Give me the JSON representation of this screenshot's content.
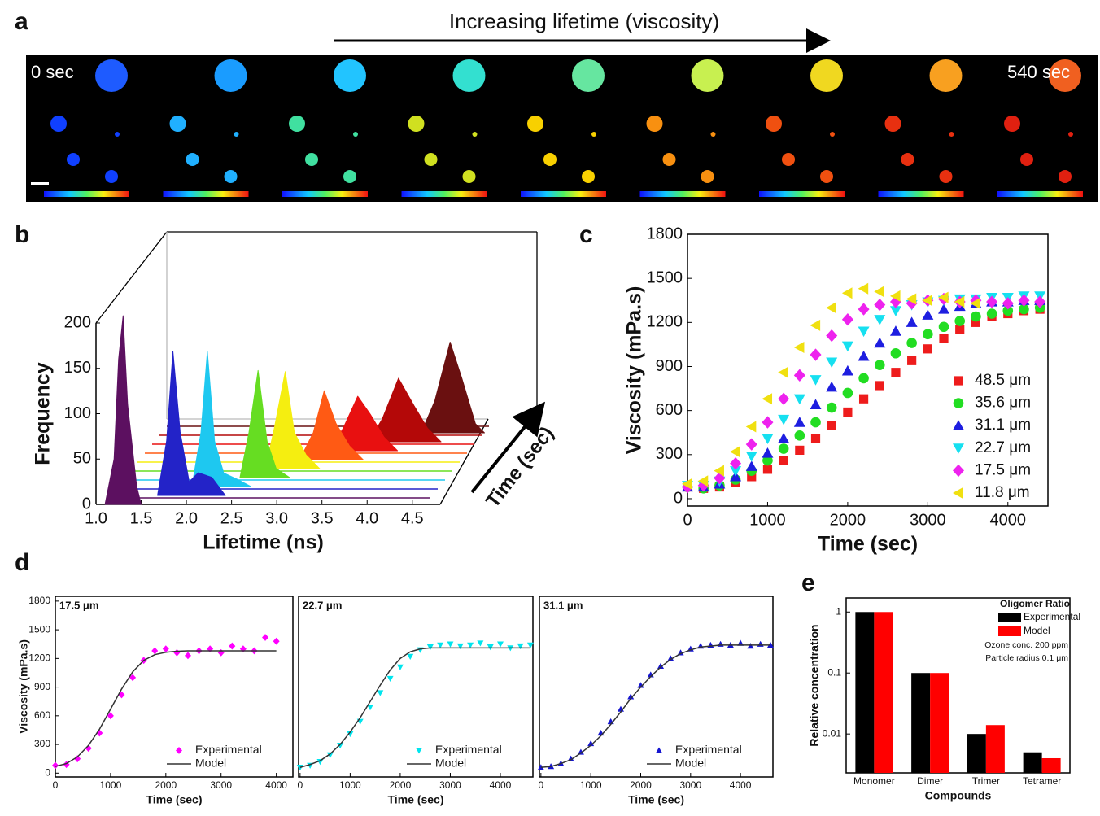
{
  "panel_a": {
    "panel_label": "a",
    "arrow_text": "Increasing lifetime (viscosity)",
    "start_label": "0 sec",
    "end_label": "540 sec"
  },
  "chart_data": [
    {
      "type": "ridgeline",
      "panel_label": "b",
      "xlabel": "Lifetime (ns)",
      "ylabel": "Frequency",
      "zlabel": "Time (sec)",
      "xlim": [
        1.0,
        4.7
      ],
      "ylim": [
        0,
        200
      ],
      "xticks": [
        {
          "value": 1,
          "label": "1.0"
        },
        1.5,
        {
          "value": 2,
          "label": "2.0"
        },
        2.5,
        {
          "value": 3,
          "label": "3.0"
        },
        3.5,
        {
          "value": 4,
          "label": "4.0"
        },
        4.5
      ],
      "yticks": [
        0,
        50,
        100,
        150,
        200
      ],
      "series": [
        {
          "color": "#5c1060",
          "x": [
            1.1,
            1.2,
            1.25,
            1.3,
            1.35,
            1.45,
            1.5
          ],
          "values": [
            0,
            50,
            160,
            208,
            110,
            20,
            0
          ]
        },
        {
          "color": "#2323c8",
          "x": [
            1.6,
            1.7,
            1.77,
            1.85,
            1.95,
            2.05,
            2.2,
            2.35
          ],
          "values": [
            0,
            60,
            159,
            70,
            15,
            25,
            20,
            0
          ]
        },
        {
          "color": "#1ec8f0",
          "x": [
            1.9,
            2.0,
            2.07,
            2.15,
            2.25,
            2.4,
            2.55
          ],
          "values": [
            0,
            60,
            149,
            50,
            15,
            8,
            0
          ]
        },
        {
          "color": "#66dd22",
          "x": [
            2.35,
            2.45,
            2.55,
            2.65,
            2.75,
            2.9
          ],
          "values": [
            0,
            50,
            118,
            40,
            10,
            0
          ]
        },
        {
          "color": "#f5ee10",
          "x": [
            2.55,
            2.65,
            2.77,
            2.87,
            3.0,
            3.15
          ],
          "values": [
            0,
            45,
            107,
            40,
            15,
            0
          ]
        },
        {
          "color": "#ff5a14",
          "x": [
            2.85,
            3.0,
            3.12,
            3.25,
            3.4,
            3.55
          ],
          "values": [
            0,
            30,
            76,
            40,
            15,
            0
          ]
        },
        {
          "color": "#e81010",
          "x": [
            3.1,
            3.25,
            3.41,
            3.55,
            3.7,
            3.85
          ],
          "values": [
            0,
            25,
            60,
            40,
            15,
            0
          ]
        },
        {
          "color": "#b40808",
          "x": [
            3.45,
            3.6,
            3.78,
            3.95,
            4.1,
            4.25
          ],
          "values": [
            0,
            25,
            70,
            40,
            15,
            0
          ]
        },
        {
          "color": "#6a1010",
          "x": [
            3.95,
            4.1,
            4.27,
            4.4,
            4.55,
            4.65
          ],
          "values": [
            0,
            35,
            100,
            60,
            10,
            0
          ]
        }
      ]
    },
    {
      "type": "scatter",
      "panel_label": "c",
      "xlabel": "Time (sec)",
      "ylabel": "Viscosity (mPa.s)",
      "xlim": [
        0,
        4500
      ],
      "ylim": [
        -50,
        1800
      ],
      "xticks": [
        0,
        1000,
        2000,
        3000,
        4000
      ],
      "yticks": [
        0,
        300,
        600,
        900,
        1200,
        1500,
        1800
      ],
      "legend": "lower right",
      "x": [
        0,
        200,
        400,
        600,
        800,
        1000,
        1200,
        1400,
        1600,
        1800,
        2000,
        2200,
        2400,
        2600,
        2800,
        3000,
        3200,
        3400,
        3600,
        3800,
        4000,
        4200,
        4400
      ],
      "series": [
        {
          "name": "48.5 μm",
          "color": "#ee1c1c",
          "marker": "square",
          "values": [
            80,
            70,
            80,
            110,
            150,
            200,
            260,
            330,
            410,
            500,
            590,
            680,
            770,
            860,
            940,
            1020,
            1090,
            1150,
            1200,
            1240,
            1260,
            1280,
            1290
          ]
        },
        {
          "name": "35.6 μm",
          "color": "#22dd22",
          "marker": "circle",
          "values": [
            80,
            70,
            90,
            130,
            190,
            260,
            340,
            430,
            520,
            620,
            720,
            820,
            910,
            990,
            1060,
            1120,
            1170,
            1210,
            1240,
            1260,
            1280,
            1290,
            1300
          ]
        },
        {
          "name": "31.1 μm",
          "color": "#1e1ee0",
          "marker": "triangle-up",
          "values": [
            80,
            80,
            100,
            150,
            220,
            310,
            410,
            520,
            640,
            760,
            870,
            970,
            1060,
            1140,
            1200,
            1250,
            1290,
            1310,
            1330,
            1340,
            1340,
            1350,
            1350
          ]
        },
        {
          "name": "22.7 μm",
          "color": "#16e0f0",
          "marker": "triangle-down",
          "values": [
            90,
            90,
            120,
            190,
            290,
            410,
            540,
            680,
            810,
            930,
            1040,
            1140,
            1220,
            1280,
            1320,
            1340,
            1350,
            1360,
            1360,
            1370,
            1370,
            1380,
            1380
          ]
        },
        {
          "name": "17.5 μm",
          "color": "#ee22ee",
          "marker": "diamond",
          "values": [
            80,
            90,
            140,
            240,
            370,
            520,
            680,
            840,
            980,
            1110,
            1220,
            1290,
            1320,
            1340,
            1330,
            1350,
            1360,
            1340,
            1350,
            1340,
            1330,
            1350,
            1340
          ]
        },
        {
          "name": "11.8 μm",
          "color": "#f0e010",
          "marker": "triangle-left",
          "values": [
            100,
            120,
            190,
            320,
            490,
            680,
            860,
            1030,
            1180,
            1300,
            1400,
            1430,
            1410,
            1380,
            1360,
            1350,
            1370,
            1340,
            1330,
            null,
            null,
            null,
            null
          ]
        }
      ]
    },
    {
      "type": "scatter",
      "panel_label": "d",
      "subtitle": "17.5 μm",
      "xlabel": "Time (sec)",
      "ylabel": "Viscosity (mPa.s)",
      "xlim": [
        0,
        4300
      ],
      "ylim": [
        -40,
        1850
      ],
      "xticks": [
        0,
        1000,
        2000,
        3000,
        4000
      ],
      "yticks": [
        0,
        300,
        600,
        900,
        1200,
        1500,
        1800
      ],
      "legend": "lower right",
      "x": [
        0,
        200,
        400,
        600,
        800,
        1000,
        1200,
        1400,
        1600,
        1800,
        2000,
        2200,
        2400,
        2600,
        2800,
        3000,
        3200,
        3400,
        3600,
        3800,
        4000
      ],
      "series": [
        {
          "name": "Experimental",
          "color": "#ff00ff",
          "marker": "diamond",
          "values": [
            80,
            90,
            150,
            260,
            420,
            600,
            820,
            1000,
            1180,
            1280,
            1300,
            1260,
            1230,
            1280,
            1300,
            1260,
            1330,
            1300,
            1280,
            1420,
            1380
          ]
        },
        {
          "name": "Model",
          "color": "#333333",
          "line": true,
          "values": [
            70,
            100,
            170,
            290,
            460,
            670,
            880,
            1060,
            1180,
            1240,
            1265,
            1275,
            1280,
            1280,
            1280,
            1280,
            1280,
            1280,
            1280,
            1280,
            1280
          ]
        }
      ]
    },
    {
      "type": "scatter",
      "subtitle": "22.7 μm",
      "xlabel": "Time (sec)",
      "xlim": [
        -30,
        4650
      ],
      "ylim": [
        -40,
        1850
      ],
      "xticks": [
        0,
        1000,
        2000,
        3000,
        4000
      ],
      "legend": "lower right",
      "x": [
        0,
        200,
        400,
        600,
        800,
        1000,
        1200,
        1400,
        1600,
        1800,
        2000,
        2200,
        2400,
        2600,
        2800,
        3000,
        3200,
        3400,
        3600,
        3800,
        4000,
        4200,
        4400,
        4600
      ],
      "series": [
        {
          "name": "Experimental",
          "color": "#00e5ee",
          "marker": "triangle-down",
          "values": [
            60,
            80,
            120,
            190,
            290,
            410,
            540,
            690,
            840,
            990,
            1110,
            1220,
            1290,
            1320,
            1340,
            1350,
            1330,
            1340,
            1360,
            1320,
            1350,
            1310,
            1330,
            1340
          ]
        },
        {
          "name": "Model",
          "color": "#333333",
          "line": true,
          "values": [
            60,
            90,
            130,
            200,
            300,
            430,
            580,
            750,
            920,
            1080,
            1200,
            1270,
            1300,
            1310,
            1310,
            1310,
            1310,
            1310,
            1310,
            1310,
            1310,
            1310,
            1310,
            1310
          ]
        }
      ]
    },
    {
      "type": "scatter",
      "subtitle": "31.1 μm",
      "xlabel": "Time (sec)",
      "xlim": [
        -30,
        4650
      ],
      "ylim": [
        -40,
        1850
      ],
      "xticks": [
        0,
        1000,
        2000,
        3000,
        4000
      ],
      "legend": "lower right",
      "x": [
        0,
        200,
        400,
        600,
        800,
        1000,
        1200,
        1400,
        1600,
        1800,
        2000,
        2200,
        2400,
        2600,
        2800,
        3000,
        3200,
        3400,
        3600,
        3800,
        4000,
        4200,
        4400,
        4600
      ],
      "series": [
        {
          "name": "Experimental",
          "color": "#1515d0",
          "marker": "triangle-up",
          "values": [
            60,
            70,
            100,
            150,
            220,
            310,
            420,
            540,
            670,
            800,
            920,
            1030,
            1120,
            1200,
            1260,
            1300,
            1330,
            1340,
            1350,
            1340,
            1360,
            1330,
            1350,
            1340
          ]
        },
        {
          "name": "Model",
          "color": "#333333",
          "line": true,
          "values": [
            60,
            70,
            100,
            140,
            210,
            290,
            390,
            510,
            640,
            780,
            900,
            1010,
            1110,
            1190,
            1250,
            1290,
            1320,
            1330,
            1340,
            1340,
            1340,
            1340,
            1340,
            1340
          ]
        }
      ]
    },
    {
      "type": "bar",
      "panel_label": "e",
      "xlabel": "Compounds",
      "ylabel": "Relative concentration",
      "log_y": true,
      "legend_title": "Oligomer Ratio",
      "notes": [
        "Ozone conc. 200 ppm",
        "Particle radius 0.1 μm"
      ],
      "legend": "upper right",
      "categories": [
        "Monomer",
        "Dimer",
        "Trimer",
        "Tetramer"
      ],
      "ylim": [
        0.0023,
        1.7
      ],
      "yticks": [
        1,
        0.1,
        0.01
      ],
      "series": [
        {
          "name": "Experimental",
          "color": "#000000",
          "values": [
            1,
            0.1,
            0.01,
            0.005
          ]
        },
        {
          "name": "Model",
          "color": "#ff0000",
          "values": [
            1,
            0.1,
            0.014,
            0.004
          ]
        }
      ]
    }
  ]
}
